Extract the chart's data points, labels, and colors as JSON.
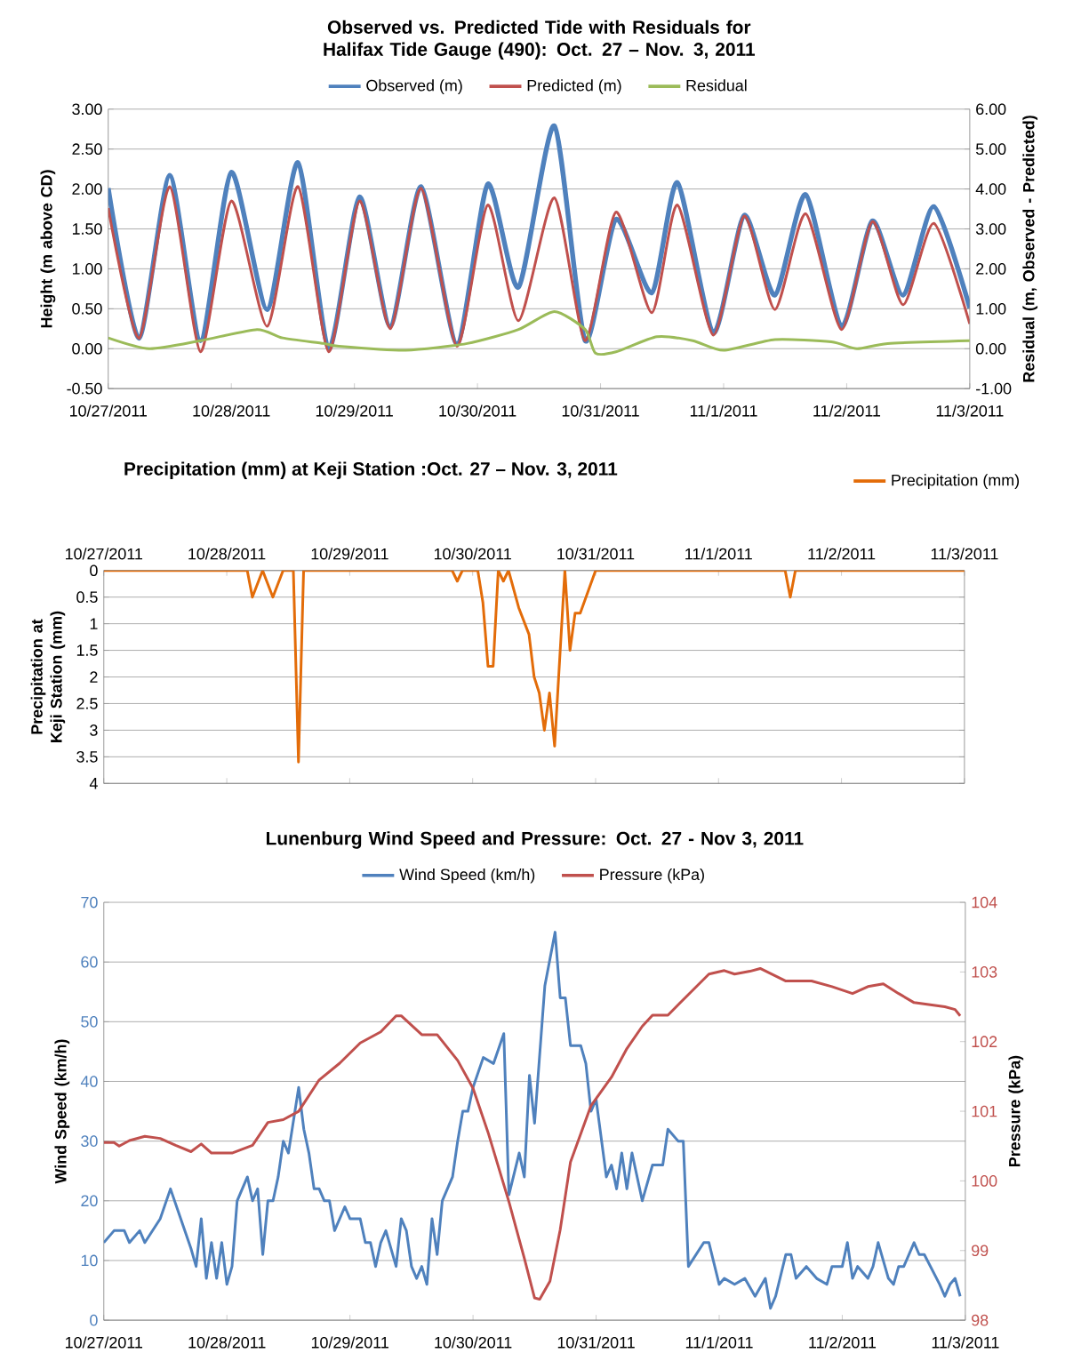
{
  "chart_data": [
    {
      "type": "line",
      "title": "Observed vs. Predicted Tide with Residuals for Halifax Tide Gauge (490): Oct. 27 – Nov. 3, 2011",
      "ylabel": "Height (m above CD)",
      "y2label": "Residual (m, Observed - Predicted)",
      "x": [
        "2011-10-27T00:00",
        "2011-10-27T06:00",
        "2011-10-27T12:00",
        "2011-10-27T18:00",
        "2011-10-28T00:00",
        "2011-10-28T07:00",
        "2011-10-28T13:00",
        "2011-10-28T19:00",
        "2011-10-29T01:00",
        "2011-10-29T07:00",
        "2011-10-29T13:00",
        "2011-10-29T20:00",
        "2011-10-30T02:00",
        "2011-10-30T08:00",
        "2011-10-30T15:00",
        "2011-10-30T21:00",
        "2011-10-31T03:00",
        "2011-10-31T10:00",
        "2011-10-31T15:00",
        "2011-10-31T22:00",
        "2011-11-01T04:00",
        "2011-11-01T10:00",
        "2011-11-01T16:00",
        "2011-11-01T23:00",
        "2011-11-02T05:00",
        "2011-11-02T11:00",
        "2011-11-02T17:00",
        "2011-11-03T00:00"
      ],
      "series": [
        {
          "name": "Observed (m)",
          "color": "#4f81bd",
          "values": [
            2.01,
            0.13,
            2.17,
            0.1,
            2.21,
            0.49,
            2.33,
            0.0,
            1.9,
            0.28,
            2.03,
            0.06,
            2.06,
            0.77,
            2.79,
            0.1,
            1.62,
            0.7,
            2.08,
            0.2,
            1.67,
            0.67,
            1.93,
            0.28,
            1.6,
            0.67,
            1.78,
            0.51
          ]
        },
        {
          "name": "Predicted (m)",
          "color": "#c0504d",
          "values": [
            1.76,
            0.13,
            2.03,
            -0.04,
            1.85,
            0.28,
            2.03,
            -0.04,
            1.85,
            0.25,
            2.01,
            0.03,
            1.8,
            0.35,
            1.89,
            0.1,
            1.71,
            0.45,
            1.8,
            0.17,
            1.66,
            0.49,
            1.69,
            0.24,
            1.59,
            0.55,
            1.57,
            0.31
          ]
        },
        {
          "name": "Residual",
          "color": "#9bbb59",
          "axis": "y2",
          "x": [
            "2011-10-27T00:00",
            "2011-10-27T08:00",
            "2011-10-27T18:00",
            "2011-10-28T05:00",
            "2011-10-28T10:00",
            "2011-10-28T18:00",
            "2011-10-28T21:00",
            "2011-10-29T10:00",
            "2011-10-29T22:00",
            "2011-10-30T08:00",
            "2011-10-30T15:00",
            "2011-10-30T21:00",
            "2011-10-30T23:00",
            "2011-10-31T03:00",
            "2011-10-31T11:00",
            "2011-10-31T18:00",
            "2011-11-01T00:00",
            "2011-11-01T10:00",
            "2011-11-01T21:00",
            "2011-11-02T02:00",
            "2011-11-02T08:00",
            "2011-11-03T00:00"
          ],
          "values": [
            0.27,
            0,
            0.2,
            0.48,
            0.27,
            0.13,
            0.06,
            -0.04,
            0.13,
            0.48,
            0.93,
            0.48,
            -0.11,
            -0.08,
            0.3,
            0.2,
            -0.04,
            0.23,
            0.17,
            0,
            0.13,
            0.2
          ]
        }
      ],
      "xlim": [
        "2011-10-27",
        "2011-11-03"
      ],
      "xticks": [
        {
          "value": "2011-10-27",
          "label": "10/27/2011"
        },
        {
          "value": "2011-10-28",
          "label": "10/28/2011"
        },
        {
          "value": "2011-10-29",
          "label": "10/29/2011"
        },
        {
          "value": "2011-10-30",
          "label": "10/30/2011"
        },
        {
          "value": "2011-10-31",
          "label": "10/31/2011"
        },
        {
          "value": "2011-11-01",
          "label": "11/1/2011"
        },
        {
          "value": "2011-11-02",
          "label": "11/2/2011"
        },
        {
          "value": "2011-11-03",
          "label": "11/3/2011"
        }
      ],
      "ylim": [
        -0.5,
        3
      ],
      "yticks": [
        {
          "value": -0.5,
          "label": "-0.50"
        },
        {
          "value": 0,
          "label": "0.00"
        },
        {
          "value": 0.5,
          "label": "0.50"
        },
        {
          "value": 1,
          "label": "1.00"
        },
        {
          "value": 1.5,
          "label": "1.50"
        },
        {
          "value": 2,
          "label": "2.00"
        },
        {
          "value": 2.5,
          "label": "2.50"
        },
        {
          "value": 3,
          "label": "3.00"
        }
      ],
      "y2lim": [
        -1,
        6
      ],
      "y2ticks": [
        {
          "value": -1,
          "label": "-1.00"
        },
        {
          "value": 0,
          "label": "0.00"
        },
        {
          "value": 1,
          "label": "1.00"
        },
        {
          "value": 2,
          "label": "2.00"
        },
        {
          "value": 3,
          "label": "3.00"
        },
        {
          "value": 4,
          "label": "4.00"
        },
        {
          "value": 5,
          "label": "5.00"
        },
        {
          "value": 6,
          "label": "6.00"
        }
      ],
      "grid": "y",
      "legend": "top"
    },
    {
      "type": "line",
      "title": "Precipitation (mm) at Keji Station :Oct. 27 – Nov. 3, 2011",
      "ylabel": "Precipitation at Keji Station (mm)",
      "series": [
        {
          "name": "Precipitation (mm)",
          "color": "#e36c09",
          "x": [
            "2011-10-27T00:00",
            "2011-10-28T04:00",
            "2011-10-28T05:00",
            "2011-10-28T07:00",
            "2011-10-28T09:00",
            "2011-10-28T11:00",
            "2011-10-28T13:00",
            "2011-10-28T14:00",
            "2011-10-28T15:00",
            "2011-10-29T20:00",
            "2011-10-29T21:00",
            "2011-10-29T22:00",
            "2011-10-30T01:00",
            "2011-10-30T02:00",
            "2011-10-30T03:00",
            "2011-10-30T04:00",
            "2011-10-30T05:00",
            "2011-10-30T06:00",
            "2011-10-30T07:00",
            "2011-10-30T09:00",
            "2011-10-30T11:00",
            "2011-10-30T12:00",
            "2011-10-30T13:00",
            "2011-10-30T14:00",
            "2011-10-30T15:00",
            "2011-10-30T16:00",
            "2011-10-30T18:00",
            "2011-10-30T19:00",
            "2011-10-30T20:00",
            "2011-10-30T21:00",
            "2011-10-31T00:00",
            "2011-11-01T13:00",
            "2011-11-01T14:00",
            "2011-11-01T15:00",
            "2011-11-03T00:00"
          ],
          "values": [
            0,
            0,
            0.5,
            0,
            0.5,
            0,
            0,
            3.6,
            0,
            0,
            0.2,
            0,
            0,
            0.6,
            1.8,
            1.8,
            0,
            0.2,
            0,
            0.7,
            1.2,
            2.0,
            2.3,
            3.0,
            2.3,
            3.3,
            0,
            1.5,
            0.8,
            0.8,
            0,
            0,
            0.5,
            0,
            0
          ]
        }
      ],
      "xlim": [
        "2011-10-27",
        "2011-11-03"
      ],
      "xticks": [
        {
          "value": "2011-10-27",
          "label": "10/27/2011"
        },
        {
          "value": "2011-10-28",
          "label": "10/28/2011"
        },
        {
          "value": "2011-10-29",
          "label": "10/29/2011"
        },
        {
          "value": "2011-10-30",
          "label": "10/30/2011"
        },
        {
          "value": "2011-10-31",
          "label": "10/31/2011"
        },
        {
          "value": "2011-11-01",
          "label": "11/1/2011"
        },
        {
          "value": "2011-11-02",
          "label": "11/2/2011"
        },
        {
          "value": "2011-11-03",
          "label": "11/3/2011"
        }
      ],
      "ylim": [
        4,
        0
      ],
      "yticks": [
        0,
        0.5,
        1,
        1.5,
        2,
        2.5,
        3,
        3.5,
        4
      ],
      "grid": "y",
      "legend": "top right"
    },
    {
      "type": "line",
      "title": "Lunenburg Wind Speed and Pressure: Oct. 27  - Nov 3, 2011",
      "ylabel": "Wind Speed (km/h)",
      "y2label": "Pressure (kPa)",
      "series": [
        {
          "name": "Wind Speed (km/h)",
          "color": "#4f81bd",
          "x": [
            "2011-10-27T00:00",
            "2011-10-27T02:00",
            "2011-10-27T04:00",
            "2011-10-27T05:00",
            "2011-10-27T07:00",
            "2011-10-27T08:00",
            "2011-10-27T11:00",
            "2011-10-27T13:00",
            "2011-10-27T15:00",
            "2011-10-27T17:00",
            "2011-10-27T18:00",
            "2011-10-27T19:00",
            "2011-10-27T20:00",
            "2011-10-27T21:00",
            "2011-10-27T22:00",
            "2011-10-27T23:00",
            "2011-10-28T00:00",
            "2011-10-28T01:00",
            "2011-10-28T02:00",
            "2011-10-28T04:00",
            "2011-10-28T05:00",
            "2011-10-28T06:00",
            "2011-10-28T07:00",
            "2011-10-28T08:00",
            "2011-10-28T09:00",
            "2011-10-28T10:00",
            "2011-10-28T11:00",
            "2011-10-28T12:00",
            "2011-10-28T14:00",
            "2011-10-28T15:00",
            "2011-10-28T16:00",
            "2011-10-28T17:00",
            "2011-10-28T18:00",
            "2011-10-28T19:00",
            "2011-10-28T20:00",
            "2011-10-28T21:00",
            "2011-10-28T23:00",
            "2011-10-29T00:00",
            "2011-10-29T02:00",
            "2011-10-29T03:00",
            "2011-10-29T04:00",
            "2011-10-29T05:00",
            "2011-10-29T06:00",
            "2011-10-29T07:00",
            "2011-10-29T09:00",
            "2011-10-29T10:00",
            "2011-10-29T11:00",
            "2011-10-29T12:00",
            "2011-10-29T13:00",
            "2011-10-29T14:00",
            "2011-10-29T15:00",
            "2011-10-29T16:00",
            "2011-10-29T17:00",
            "2011-10-29T18:00",
            "2011-10-29T20:00",
            "2011-10-29T21:00",
            "2011-10-29T22:00",
            "2011-10-29T23:00",
            "2011-10-30T00:00",
            "2011-10-30T02:00",
            "2011-10-30T04:00",
            "2011-10-30T06:00",
            "2011-10-30T07:00",
            "2011-10-30T09:00",
            "2011-10-30T10:00",
            "2011-10-30T11:00",
            "2011-10-30T12:00",
            "2011-10-30T14:00",
            "2011-10-30T16:00",
            "2011-10-30T17:00",
            "2011-10-30T18:00",
            "2011-10-30T19:00",
            "2011-10-30T21:00",
            "2011-10-30T22:00",
            "2011-10-30T23:00",
            "2011-10-31T00:00",
            "2011-10-31T02:00",
            "2011-10-31T03:00",
            "2011-10-31T04:00",
            "2011-10-31T05:00",
            "2011-10-31T06:00",
            "2011-10-31T07:00",
            "2011-10-31T09:00",
            "2011-10-31T11:00",
            "2011-10-31T13:00",
            "2011-10-31T14:00",
            "2011-10-31T16:00",
            "2011-10-31T17:00",
            "2011-10-31T18:00",
            "2011-10-31T21:00",
            "2011-10-31T22:00",
            "2011-11-01T00:00",
            "2011-11-01T01:00",
            "2011-11-01T03:00",
            "2011-11-01T05:00",
            "2011-11-01T07:00",
            "2011-11-01T09:00",
            "2011-11-01T10:00",
            "2011-11-01T11:00",
            "2011-11-01T13:00",
            "2011-11-01T14:00",
            "2011-11-01T15:00",
            "2011-11-01T17:00",
            "2011-11-01T19:00",
            "2011-11-01T21:00",
            "2011-11-01T22:00",
            "2011-11-02T00:00",
            "2011-11-02T01:00",
            "2011-11-02T02:00",
            "2011-11-02T03:00",
            "2011-11-02T05:00",
            "2011-11-02T06:00",
            "2011-11-02T07:00",
            "2011-11-02T09:00",
            "2011-11-02T10:00",
            "2011-11-02T11:00",
            "2011-11-02T12:00",
            "2011-11-02T14:00",
            "2011-11-02T15:00",
            "2011-11-02T16:00",
            "2011-11-02T19:00",
            "2011-11-02T20:00",
            "2011-11-02T21:00",
            "2011-11-02T22:00",
            "2011-11-02T23:00"
          ],
          "values": [
            13,
            15,
            15,
            13,
            15,
            13,
            17,
            22,
            17,
            12,
            9,
            17,
            7,
            13,
            7,
            13,
            6,
            9,
            20,
            24,
            20,
            22,
            11,
            20,
            20,
            24,
            30,
            28,
            39,
            32,
            28,
            22,
            22,
            20,
            20,
            15,
            19,
            17,
            17,
            13,
            13,
            9,
            13,
            15,
            9,
            17,
            15,
            9,
            7,
            9,
            6,
            17,
            11,
            20,
            24,
            30,
            35,
            35,
            39,
            44,
            43,
            48,
            21,
            28,
            24,
            41,
            33,
            56,
            65,
            54,
            54,
            46,
            46,
            43,
            35,
            37,
            24,
            26,
            22,
            28,
            22,
            28,
            20,
            26,
            26,
            32,
            30,
            30,
            9,
            13,
            13,
            6,
            7,
            6,
            7,
            4,
            7,
            2,
            4,
            11,
            11,
            7,
            9,
            7,
            6,
            9,
            9,
            13,
            7,
            9,
            7,
            9,
            13,
            7,
            6,
            9,
            9,
            13,
            11,
            11,
            6,
            4,
            6,
            7,
            4
          ]
        },
        {
          "name": "Pressure (kPa)",
          "color": "#c0504d",
          "axis": "y2",
          "x": [
            "2011-10-27T00:00",
            "2011-10-27T02:00",
            "2011-10-27T03:00",
            "2011-10-27T05:00",
            "2011-10-27T08:00",
            "2011-10-27T11:00",
            "2011-10-27T14:00",
            "2011-10-27T17:00",
            "2011-10-27T19:00",
            "2011-10-27T21:00",
            "2011-10-28T01:00",
            "2011-10-28T05:00",
            "2011-10-28T08:00",
            "2011-10-28T11:00",
            "2011-10-28T14:00",
            "2011-10-28T18:00",
            "2011-10-28T22:00",
            "2011-10-29T02:00",
            "2011-10-29T06:00",
            "2011-10-29T09:00",
            "2011-10-29T10:00",
            "2011-10-29T14:00",
            "2011-10-29T17:00",
            "2011-10-29T21:00",
            "2011-10-30T00:00",
            "2011-10-30T03:00",
            "2011-10-30T07:00",
            "2011-10-30T10:00",
            "2011-10-30T12:00",
            "2011-10-30T13:00",
            "2011-10-30T15:00",
            "2011-10-30T17:00",
            "2011-10-30T19:00",
            "2011-10-30T23:00",
            "2011-10-31T03:00",
            "2011-10-31T06:00",
            "2011-10-31T09:00",
            "2011-10-31T11:00",
            "2011-10-31T14:00",
            "2011-10-31T19:00",
            "2011-10-31T22:00",
            "2011-11-01T01:00",
            "2011-11-01T03:00",
            "2011-11-01T06:00",
            "2011-11-01T08:00",
            "2011-11-01T13:00",
            "2011-11-01T18:00",
            "2011-11-01T22:00",
            "2011-11-02T02:00",
            "2011-11-02T05:00",
            "2011-11-02T08:00",
            "2011-11-02T11:00",
            "2011-11-02T14:00",
            "2011-11-02T20:00",
            "2011-11-02T22:00",
            "2011-11-02T23:00"
          ],
          "values": [
            100.55,
            100.55,
            100.5,
            100.58,
            100.64,
            100.61,
            100.51,
            100.42,
            100.53,
            100.4,
            100.4,
            100.51,
            100.84,
            100.88,
            101.0,
            101.45,
            101.69,
            101.98,
            102.14,
            102.37,
            102.37,
            102.1,
            102.1,
            101.73,
            101.33,
            100.68,
            99.7,
            98.89,
            98.32,
            98.3,
            98.56,
            99.3,
            100.27,
            101.08,
            101.49,
            101.9,
            102.22,
            102.38,
            102.38,
            102.75,
            102.97,
            103.02,
            102.97,
            103.01,
            103.05,
            102.87,
            102.87,
            102.79,
            102.69,
            102.79,
            102.83,
            102.69,
            102.56,
            102.5,
            102.46,
            102.37
          ]
        }
      ],
      "xlim": [
        "2011-10-27",
        "2011-11-03"
      ],
      "xticks": [
        {
          "value": "2011-10-27",
          "label": "10/27/2011"
        },
        {
          "value": "2011-10-28",
          "label": "10/28/2011"
        },
        {
          "value": "2011-10-29",
          "label": "10/29/2011"
        },
        {
          "value": "2011-10-30",
          "label": "10/30/2011"
        },
        {
          "value": "2011-10-31",
          "label": "10/31/2011"
        },
        {
          "value": "2011-11-01",
          "label": "11/1/2011"
        },
        {
          "value": "2011-11-02",
          "label": "11/2/2011"
        },
        {
          "value": "2011-11-03",
          "label": "11/3/2011"
        }
      ],
      "ylim": [
        0,
        70
      ],
      "yticks": [
        0,
        10,
        20,
        30,
        40,
        50,
        60,
        70
      ],
      "y2lim": [
        98,
        104
      ],
      "y2ticks": [
        98,
        99,
        100,
        101,
        102,
        103,
        104
      ],
      "grid": "y",
      "legend": "top"
    }
  ]
}
